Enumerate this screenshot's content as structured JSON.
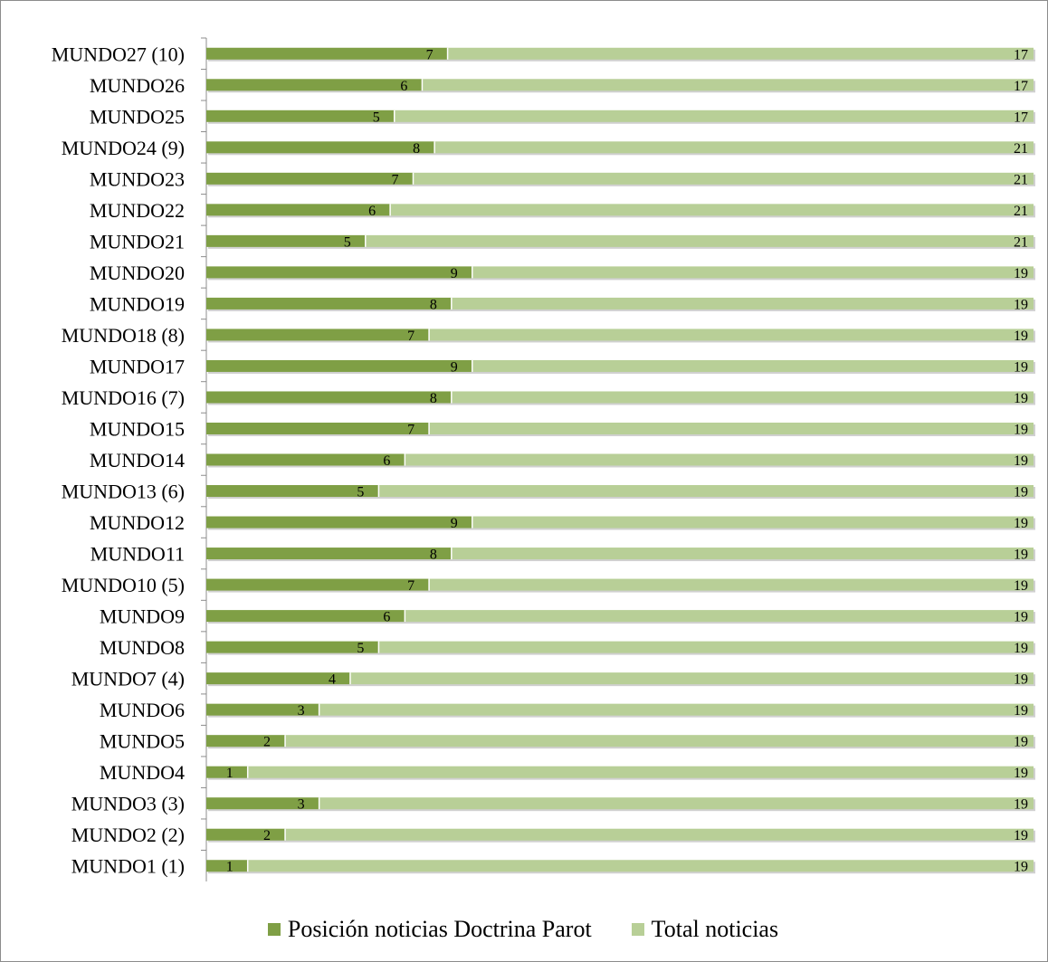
{
  "chart_data": {
    "type": "bar",
    "orientation": "horizontal",
    "stacked": true,
    "categories": [
      "MUNDO1 (1)",
      "MUNDO2 (2)",
      "MUNDO3 (3)",
      "MUNDO4",
      "MUNDO5",
      "MUNDO6",
      "MUNDO7 (4)",
      "MUNDO8",
      "MUNDO9",
      "MUNDO10 (5)",
      "MUNDO11",
      "MUNDO12",
      "MUNDO13 (6)",
      "MUNDO14",
      "MUNDO15",
      "MUNDO16 (7)",
      "MUNDO17",
      "MUNDO18 (8)",
      "MUNDO19",
      "MUNDO20",
      "MUNDO21",
      "MUNDO22",
      "MUNDO23",
      "MUNDO24 (9)",
      "MUNDO25",
      "MUNDO26",
      "MUNDO27 (10)"
    ],
    "series": [
      {
        "name": "Posición noticias Doctrina Parot",
        "color": "#7f9f45",
        "values": [
          1,
          2,
          3,
          1,
          2,
          3,
          4,
          5,
          6,
          7,
          8,
          9,
          5,
          6,
          7,
          8,
          9,
          7,
          8,
          9,
          5,
          6,
          7,
          8,
          5,
          6,
          7
        ]
      },
      {
        "name": "Total noticias",
        "color": "#b8cf97",
        "values": [
          19,
          19,
          19,
          19,
          19,
          19,
          19,
          19,
          19,
          19,
          19,
          19,
          19,
          19,
          19,
          19,
          19,
          19,
          19,
          19,
          21,
          21,
          21,
          21,
          17,
          17,
          17
        ]
      }
    ],
    "legend_position": "bottom",
    "grid": false
  }
}
